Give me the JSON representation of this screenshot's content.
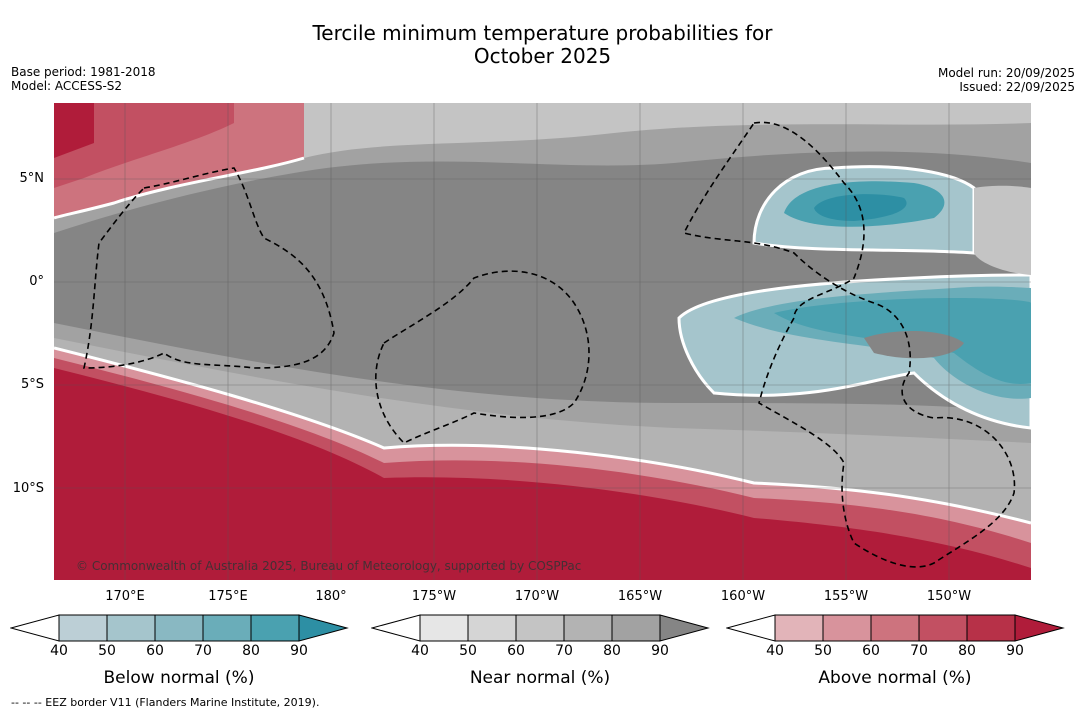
{
  "title": {
    "line1": "Tercile minimum temperature probabilities for",
    "line2": "October 2025"
  },
  "meta": {
    "base_period": "Base period: 1981-2018",
    "model": "Model: ACCESS-S2",
    "model_run": "Model run: 20/09/2025",
    "issued": "Issued: 22/09/2025"
  },
  "map": {
    "lat_labels": [
      "5°N",
      "0°",
      "5°S",
      "10°S"
    ],
    "lon_labels": [
      "170°E",
      "175°E",
      "180°",
      "175°W",
      "170°W",
      "165°W",
      "160°W",
      "155°W",
      "150°W"
    ],
    "copyright": "© Commonwealth of Australia 2025, Bureau of Meteorology, supported by COSPPac"
  },
  "colorbars": [
    {
      "title": "Below normal (%)",
      "ticks": [
        "40",
        "50",
        "60",
        "70",
        "80",
        "90"
      ],
      "colors": [
        "#bccfd6",
        "#a5c5cc",
        "#89b8c2",
        "#6aadb9",
        "#4aa1b0",
        "#2d8fa4"
      ]
    },
    {
      "title": "Near normal (%)",
      "ticks": [
        "40",
        "50",
        "60",
        "70",
        "80",
        "90"
      ],
      "colors": [
        "#e6e6e6",
        "#d5d5d5",
        "#c4c4c4",
        "#b3b3b3",
        "#a2a2a2",
        "#858585"
      ]
    },
    {
      "title": "Above normal (%)",
      "ticks": [
        "40",
        "50",
        "60",
        "70",
        "80",
        "90"
      ],
      "colors": [
        "#e2b4b9",
        "#d8939c",
        "#cd737e",
        "#c25062",
        "#b73148",
        "#b01c3a"
      ]
    }
  ],
  "footnote": "--  --  -- EEZ border V11 (Flanders Marine Institute, 2019)."
}
